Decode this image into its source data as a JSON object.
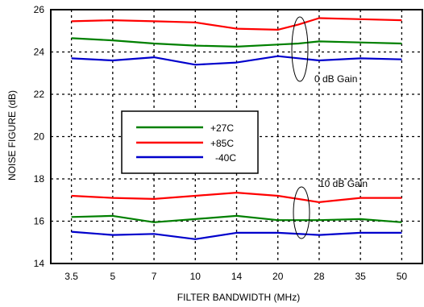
{
  "chart_data": {
    "type": "line",
    "xlabel": "FILTER BANDWIDTH (MHz)",
    "ylabel": "NOISE FIGURE (dB)",
    "x": [
      "3.5",
      "5",
      "7",
      "10",
      "14",
      "20",
      "28",
      "35",
      "50"
    ],
    "ylim": [
      14,
      26
    ],
    "yticks": [
      "14",
      "16",
      "18",
      "20",
      "22",
      "24",
      "26"
    ],
    "grid": true,
    "legend_position": "center-left",
    "annotations": [
      "0 dB Gain",
      "10 dB Gain"
    ],
    "series": [
      {
        "name": "+27C",
        "color": "#008000",
        "group": "0 dB Gain",
        "points": [
          [
            0,
            24.65
          ],
          [
            1,
            24.55
          ],
          [
            2,
            24.4
          ],
          [
            3,
            24.3
          ],
          [
            4,
            24.25
          ],
          [
            5,
            24.35
          ],
          [
            5.5,
            24.4
          ],
          [
            6,
            24.5
          ],
          [
            7,
            24.45
          ],
          [
            8,
            24.4
          ]
        ]
      },
      {
        "name": "+85C",
        "color": "#ff0000",
        "group": "0 dB Gain",
        "points": [
          [
            0,
            25.45
          ],
          [
            1,
            25.5
          ],
          [
            2,
            25.45
          ],
          [
            3,
            25.4
          ],
          [
            4,
            25.1
          ],
          [
            5,
            25.05
          ],
          [
            5.5,
            25.3
          ],
          [
            6,
            25.6
          ],
          [
            7,
            25.55
          ],
          [
            8,
            25.5
          ]
        ]
      },
      {
        "name": "-40C",
        "color": "#0000cc",
        "group": "0 dB Gain",
        "points": [
          [
            0,
            23.7
          ],
          [
            1,
            23.6
          ],
          [
            2,
            23.75
          ],
          [
            3,
            23.4
          ],
          [
            4,
            23.5
          ],
          [
            5,
            23.8
          ],
          [
            6,
            23.6
          ],
          [
            7,
            23.7
          ],
          [
            8,
            23.65
          ]
        ]
      },
      {
        "name": "+27C",
        "color": "#008000",
        "group": "10 dB Gain",
        "points": [
          [
            0,
            16.2
          ],
          [
            1,
            16.25
          ],
          [
            2,
            15.95
          ],
          [
            3,
            16.1
          ],
          [
            4,
            16.25
          ],
          [
            5,
            16.05
          ],
          [
            6,
            16.05
          ],
          [
            7,
            16.1
          ],
          [
            8,
            15.95
          ]
        ]
      },
      {
        "name": "+85C",
        "color": "#ff0000",
        "group": "10 dB Gain",
        "points": [
          [
            0,
            17.2
          ],
          [
            1,
            17.1
          ],
          [
            2,
            17.05
          ],
          [
            3,
            17.2
          ],
          [
            4,
            17.35
          ],
          [
            5,
            17.2
          ],
          [
            6,
            16.9
          ],
          [
            7,
            17.1
          ],
          [
            8,
            17.1
          ]
        ]
      },
      {
        "name": "-40C",
        "color": "#0000cc",
        "group": "10 dB Gain",
        "points": [
          [
            0,
            15.5
          ],
          [
            1,
            15.35
          ],
          [
            2,
            15.4
          ],
          [
            3,
            15.15
          ],
          [
            4,
            15.45
          ],
          [
            5,
            15.45
          ],
          [
            6,
            15.35
          ],
          [
            7,
            15.45
          ],
          [
            8,
            15.45
          ]
        ]
      }
    ],
    "legend": [
      {
        "label": "+27C",
        "color": "#008000"
      },
      {
        "label": "+85C",
        "color": "#ff0000"
      },
      {
        "label": "-40C",
        "color": "#0000cc"
      }
    ]
  }
}
